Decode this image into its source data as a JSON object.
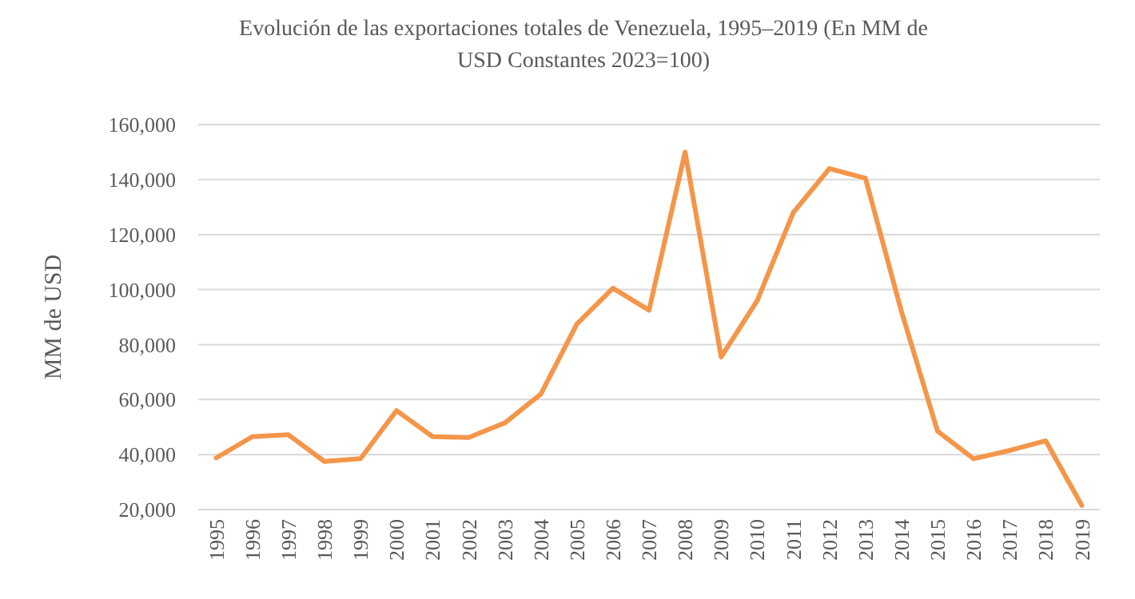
{
  "chart_data": {
    "type": "line",
    "title": "Evolución de las exportaciones totales de Venezuela, 1995–2019 (En MM de USD Constantes 2023=100)",
    "ylabel": "MM de USD",
    "categories": [
      "1995",
      "1996",
      "1997",
      "1998",
      "1999",
      "2000",
      "2001",
      "2002",
      "2003",
      "2004",
      "2005",
      "2006",
      "2007",
      "2008",
      "2009",
      "2010",
      "2011",
      "2012",
      "2013",
      "2014",
      "2015",
      "2016",
      "2017",
      "2018",
      "2019"
    ],
    "series": [
      {
        "color": "#f4964a",
        "values": [
          38800,
          46500,
          47200,
          37500,
          38500,
          56000,
          46500,
          46200,
          51500,
          62000,
          87500,
          100500,
          92500,
          150000,
          75500,
          96000,
          128000,
          144000,
          140500,
          92000,
          48500,
          38500,
          41500,
          45000,
          21500
        ]
      }
    ],
    "ylim": [
      20000,
      160000
    ],
    "yticks": [
      {
        "value": 20000,
        "label": "20,000"
      },
      {
        "value": 40000,
        "label": "40,000"
      },
      {
        "value": 60000,
        "label": "60,000"
      },
      {
        "value": 80000,
        "label": "80,000"
      },
      {
        "value": 100000,
        "label": "100,000"
      },
      {
        "value": 120000,
        "label": "120,000"
      },
      {
        "value": 140000,
        "label": "140,000"
      },
      {
        "value": 160000,
        "label": "160,000"
      }
    ],
    "grid": "y",
    "marker": "none",
    "line_style": "solid"
  }
}
